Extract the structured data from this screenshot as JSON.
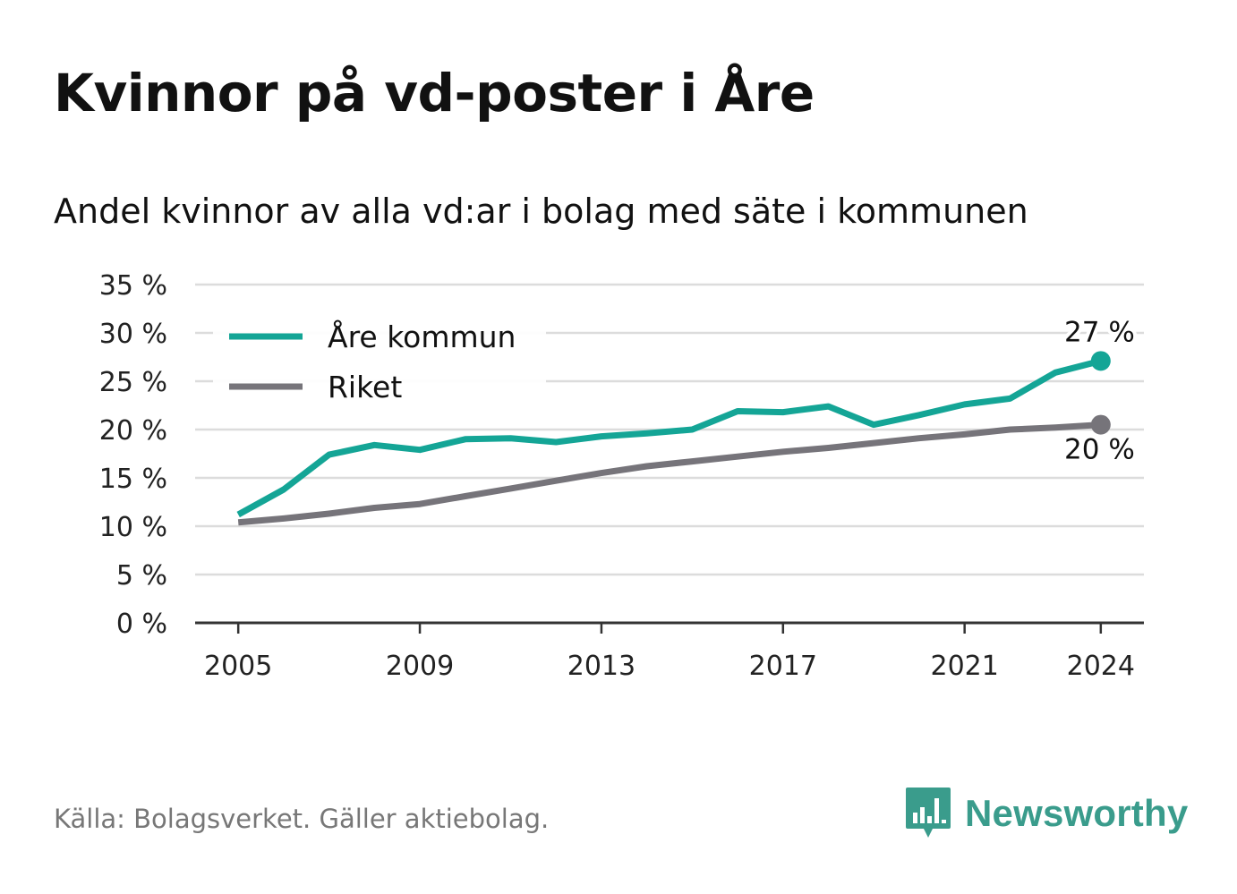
{
  "header": {
    "title": "Kvinnor på vd-poster i Åre",
    "subtitle": "Andel kvinnor av alla vd:ar i bolag med säte i kommunen"
  },
  "footer": {
    "source": "Källa: Bolagsverket. Gäller aktiebolag.",
    "brand": "Newsworthy",
    "brand_icon": "bar-chart-speech-bubble-icon",
    "brand_color": "#3a9c8c"
  },
  "chart_data": {
    "type": "line",
    "x": [
      2005,
      2006,
      2007,
      2008,
      2009,
      2010,
      2011,
      2012,
      2013,
      2014,
      2015,
      2016,
      2017,
      2018,
      2019,
      2020,
      2021,
      2022,
      2023,
      2024
    ],
    "series": [
      {
        "name": "Åre kommun",
        "color": "#14a596",
        "values": [
          11.2,
          13.8,
          17.4,
          18.4,
          17.9,
          19.0,
          19.1,
          18.7,
          19.3,
          19.6,
          20.0,
          21.9,
          21.8,
          22.4,
          20.5,
          21.5,
          22.6,
          23.2,
          25.9,
          27.1
        ],
        "end_label": "27 %"
      },
      {
        "name": "Riket",
        "color": "#76747a",
        "values": [
          10.4,
          10.8,
          11.3,
          11.9,
          12.3,
          13.1,
          13.9,
          14.7,
          15.5,
          16.2,
          16.7,
          17.2,
          17.7,
          18.1,
          18.6,
          19.1,
          19.5,
          20.0,
          20.2,
          20.5
        ],
        "end_label": "20 %"
      }
    ],
    "xticks": [
      "2005",
      "2009",
      "2013",
      "2017",
      "2021",
      "2024"
    ],
    "xtick_values": [
      2005,
      2009,
      2013,
      2017,
      2021,
      2024
    ],
    "yticks": [
      "0 %",
      "5 %",
      "10 %",
      "15 %",
      "20 %",
      "25 %",
      "30 %",
      "35 %"
    ],
    "ytick_values": [
      0,
      5,
      10,
      15,
      20,
      25,
      30,
      35
    ],
    "ylim": [
      0,
      35
    ],
    "xlim": [
      2004.05,
      2024.95
    ],
    "grid": true,
    "legend_position": "top-left"
  }
}
